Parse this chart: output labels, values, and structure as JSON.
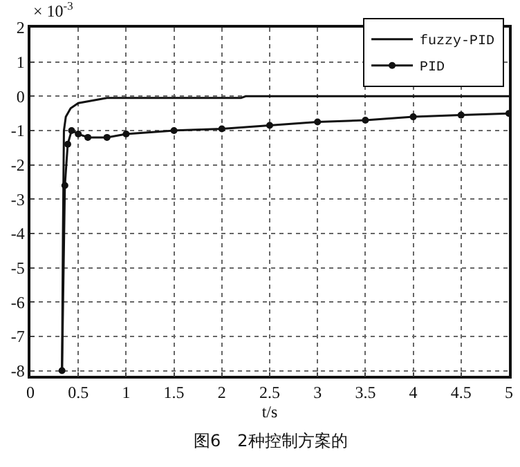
{
  "chart_data": {
    "type": "line",
    "xlabel": "t/s",
    "annotations": [
      "× 10$^{-3}$",
      "图6　2种控制方案的"
    ],
    "xlim": [
      0,
      5
    ],
    "xticks": [
      0,
      {
        "value": 0.5,
        "label": "0.5"
      },
      1,
      {
        "value": 1.5,
        "label": "1.5"
      },
      2,
      {
        "value": 2.5,
        "label": "2.5"
      },
      3,
      {
        "value": 3.5,
        "label": "3.5"
      },
      4,
      {
        "value": 4.5,
        "label": "4.5"
      },
      5
    ],
    "ylim": [
      -8.15,
      2
    ],
    "yticks": [
      -8,
      -7,
      -6,
      -5,
      -4,
      -3,
      -2,
      -1,
      0,
      1,
      2
    ],
    "grid": true,
    "legend": "top right",
    "series": [
      {
        "name": "fuzzy-PID",
        "color": "#111111",
        "marker": "none",
        "x": [
          0.33,
          0.34,
          0.35,
          0.37,
          0.42,
          0.5,
          0.6,
          0.8,
          1.2,
          2.2,
          2.25,
          3,
          4,
          5
        ],
        "values": [
          -8,
          -4,
          -1,
          -0.6,
          -0.35,
          -0.2,
          -0.15,
          -0.05,
          -0.05,
          -0.05,
          0,
          0,
          0,
          0
        ]
      },
      {
        "name": "PID",
        "color": "#111111",
        "marker": "circle",
        "x": [
          0.33,
          0.36,
          0.39,
          0.43,
          0.5,
          0.6,
          0.8,
          1,
          1.5,
          2,
          2.5,
          3,
          3.5,
          4,
          4.5,
          5
        ],
        "values": [
          -8,
          -2.6,
          -1.4,
          -1,
          -1.1,
          -1.2,
          -1.2,
          -1.1,
          -1,
          -0.95,
          -0.85,
          -0.75,
          -0.7,
          -0.6,
          -0.55,
          -0.5
        ]
      }
    ]
  }
}
